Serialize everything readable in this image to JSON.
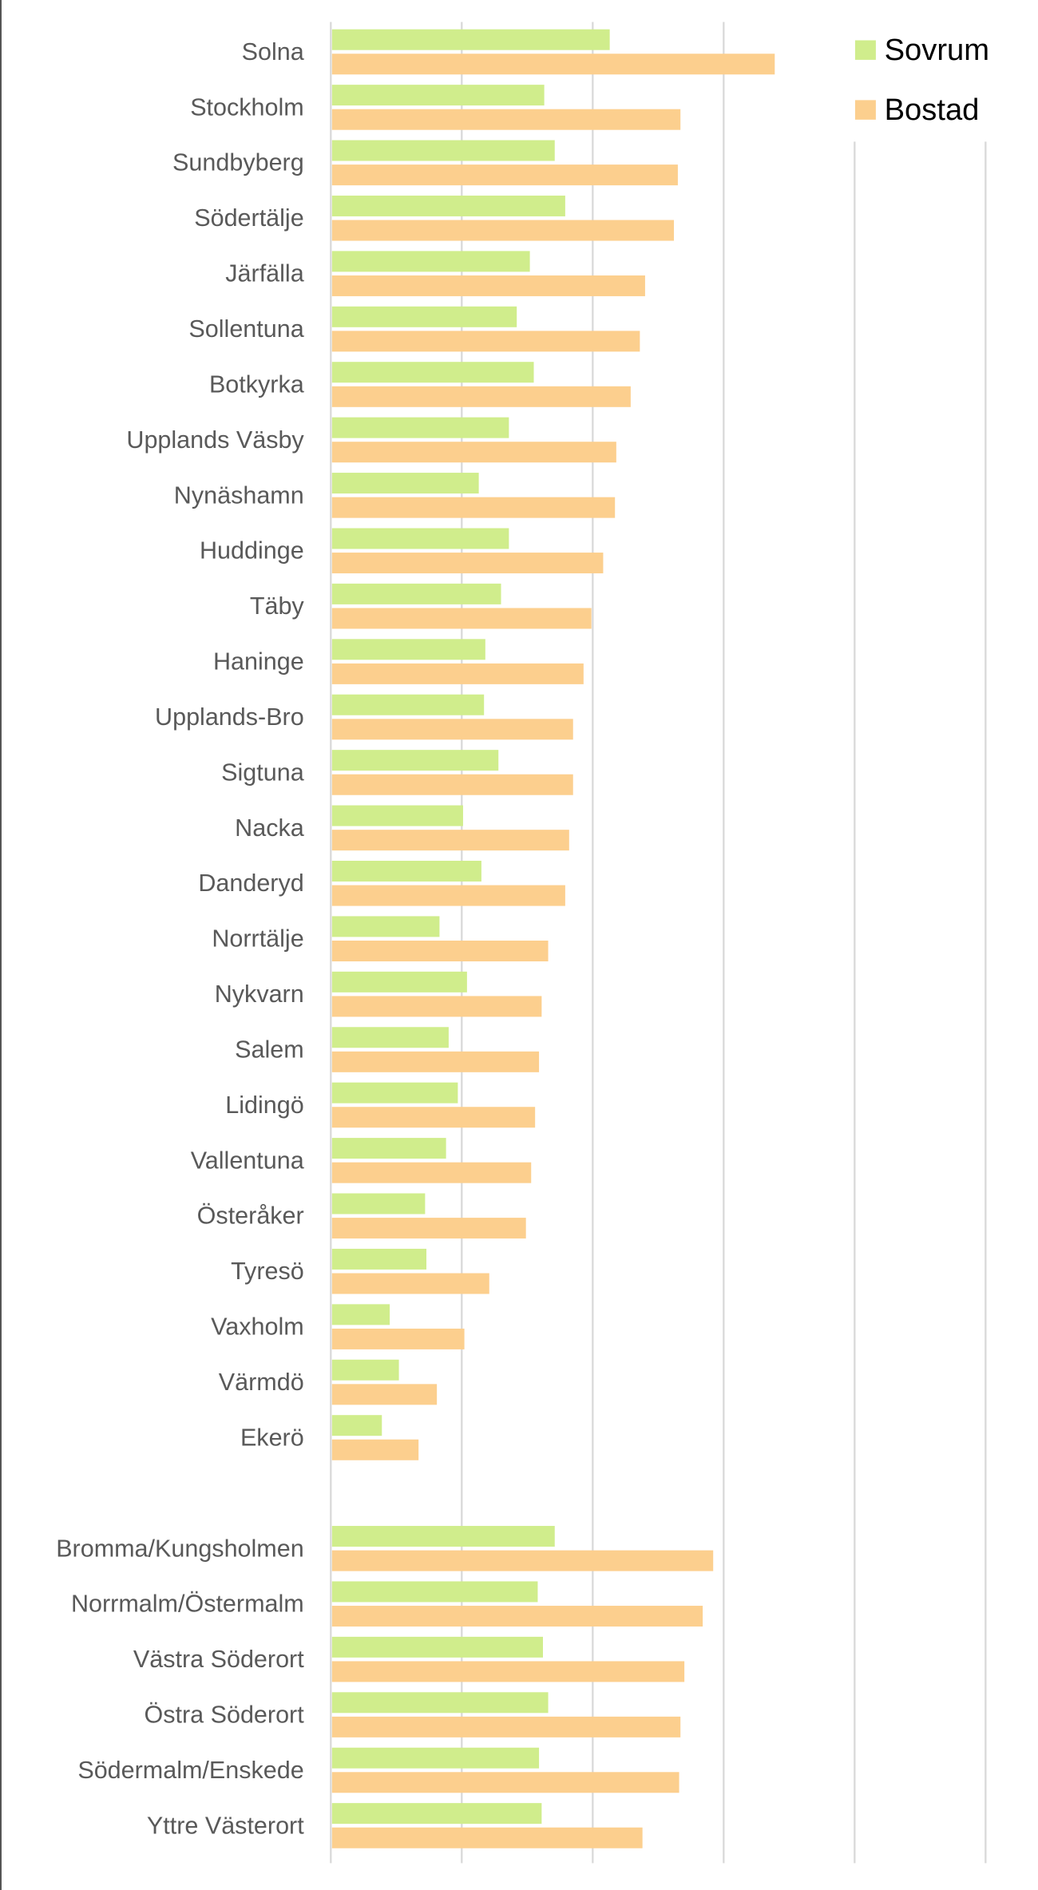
{
  "chart_data": {
    "type": "bar",
    "orientation": "horizontal",
    "categories": [
      "Solna",
      "Stockholm",
      "Sundbyberg",
      "Södertälje",
      "Järfälla",
      "Sollentuna",
      "Botkyrka",
      "Upplands Väsby",
      "Nynäshamn",
      "Huddinge",
      "Täby",
      "Haninge",
      "Upplands-Bro",
      "Sigtuna",
      "Nacka",
      "Danderyd",
      "Norrtälje",
      "Nykvarn",
      "Salem",
      "Lidingö",
      "Vallentuna",
      "Österåker",
      "Tyresö",
      "Vaxholm",
      "Värmdö",
      "Ekerö",
      "",
      "Bromma/Kungsholmen",
      "Norrmalm/Östermalm",
      "Västra Söderort",
      "Östra Söderort",
      "Södermalm/Enskede",
      "Yttre Västerort"
    ],
    "series": [
      {
        "name": "Sovrum",
        "color": "#d0ed8c",
        "values": [
          21.3,
          16.3,
          17.1,
          17.9,
          15.2,
          14.2,
          15.5,
          13.6,
          11.3,
          13.6,
          13.0,
          11.8,
          11.7,
          12.8,
          10.1,
          11.5,
          8.3,
          10.4,
          9.0,
          9.7,
          8.8,
          7.2,
          7.3,
          4.5,
          5.2,
          3.9,
          null,
          17.1,
          15.8,
          16.2,
          16.6,
          15.9,
          16.1
        ]
      },
      {
        "name": "Bostad",
        "color": "#fccf8e",
        "values": [
          33.9,
          26.7,
          26.5,
          26.2,
          24.0,
          23.6,
          22.9,
          21.8,
          21.7,
          20.8,
          19.9,
          19.3,
          18.5,
          18.5,
          18.2,
          17.9,
          16.6,
          16.1,
          15.9,
          15.6,
          15.3,
          14.9,
          12.1,
          10.2,
          8.1,
          6.7,
          null,
          29.2,
          28.4,
          27.0,
          26.7,
          26.6,
          23.8
        ]
      }
    ],
    "xlim": [
      0,
      50
    ],
    "x_ticks": [
      "0%",
      "10%",
      "20%",
      "30%",
      "40%",
      "50%"
    ],
    "grid": true,
    "legend_position": "top-right",
    "title": "",
    "xlabel": "",
    "ylabel": ""
  }
}
